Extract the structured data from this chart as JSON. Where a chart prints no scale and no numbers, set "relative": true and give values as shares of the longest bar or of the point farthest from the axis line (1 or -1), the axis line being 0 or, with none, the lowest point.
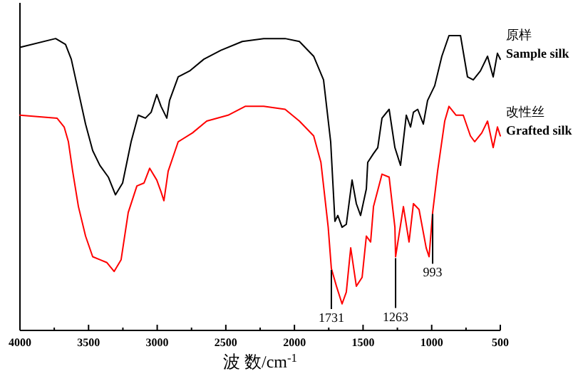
{
  "chart_data": {
    "type": "line",
    "relative": true,
    "xlabel": "波 数/cm$^{-1}$",
    "xlim": [
      4000,
      500
    ],
    "xticks": [
      4000,
      {
        "value": 3750,
        "label": null
      },
      3500,
      {
        "value": 3250,
        "label": null
      },
      3000,
      {
        "value": 2750,
        "label": null
      },
      2500,
      {
        "value": 2250,
        "label": null
      },
      2000,
      {
        "value": 1750,
        "label": null
      },
      1500,
      {
        "value": 1250,
        "label": null
      },
      1000,
      {
        "value": 750,
        "label": null
      },
      500
    ],
    "series": [
      {
        "name": "原样\nSample silk",
        "color": "#000000",
        "x": [
          4000,
          3740,
          3668,
          3626,
          3574,
          3522,
          3470,
          3418,
          3356,
          3304,
          3252,
          3190,
          3138,
          3086,
          3044,
          3003,
          2972,
          2930,
          2910,
          2847,
          2764,
          2660,
          2536,
          2380,
          2224,
          2068,
          1964,
          1860,
          1788,
          1736,
          1705,
          1684,
          1653,
          1622,
          1580,
          1549,
          1518,
          1476,
          1466,
          1424,
          1393,
          1362,
          1310,
          1268,
          1227,
          1185,
          1154,
          1133,
          1102,
          1061,
          1030,
          978,
          926,
          874,
          790,
          739,
          697,
          645,
          593,
          552,
          521,
          500
        ],
        "values": [
          0.96,
          0.99,
          0.97,
          0.92,
          0.81,
          0.7,
          0.61,
          0.56,
          0.52,
          0.46,
          0.5,
          0.64,
          0.73,
          0.72,
          0.74,
          0.8,
          0.76,
          0.72,
          0.78,
          0.86,
          0.88,
          0.92,
          0.95,
          0.98,
          0.99,
          0.99,
          0.98,
          0.93,
          0.85,
          0.64,
          0.37,
          0.39,
          0.35,
          0.36,
          0.51,
          0.43,
          0.39,
          0.48,
          0.57,
          0.6,
          0.62,
          0.72,
          0.75,
          0.62,
          0.56,
          0.73,
          0.69,
          0.74,
          0.75,
          0.7,
          0.78,
          0.83,
          0.93,
          1.0,
          1.0,
          0.86,
          0.85,
          0.88,
          0.93,
          0.86,
          0.94,
          0.92
        ]
      },
      {
        "name": "改性丝\nGrafted silk",
        "color": "#ff0000",
        "x": [
          4000,
          3730,
          3678,
          3647,
          3616,
          3574,
          3522,
          3470,
          3418,
          3366,
          3314,
          3263,
          3211,
          3148,
          3096,
          3055,
          3003,
          2972,
          2951,
          2920,
          2847,
          2743,
          2639,
          2484,
          2359,
          2224,
          2068,
          1964,
          1860,
          1807,
          1754,
          1731,
          1694,
          1653,
          1622,
          1590,
          1549,
          1507,
          1476,
          1445,
          1424,
          1362,
          1310,
          1268,
          1263,
          1206,
          1165,
          1133,
          1092,
          1040,
          1019,
          993,
          957,
          905,
          874,
          822,
          770,
          718,
          687,
          635,
          593,
          552,
          521,
          500
        ],
        "values": [
          0.73,
          0.72,
          0.69,
          0.64,
          0.54,
          0.42,
          0.32,
          0.25,
          0.24,
          0.23,
          0.2,
          0.24,
          0.4,
          0.49,
          0.5,
          0.55,
          0.51,
          0.47,
          0.44,
          0.54,
          0.64,
          0.67,
          0.71,
          0.73,
          0.76,
          0.76,
          0.75,
          0.71,
          0.66,
          0.57,
          0.35,
          0.21,
          0.15,
          0.09,
          0.13,
          0.28,
          0.15,
          0.18,
          0.32,
          0.3,
          0.42,
          0.53,
          0.52,
          0.35,
          0.25,
          0.42,
          0.3,
          0.43,
          0.41,
          0.28,
          0.25,
          0.4,
          0.54,
          0.71,
          0.76,
          0.73,
          0.73,
          0.66,
          0.64,
          0.67,
          0.71,
          0.62,
          0.69,
          0.66
        ]
      }
    ],
    "annotations": [
      {
        "text": "1731",
        "x": 1731,
        "y": 0.21
      },
      {
        "text": "1263",
        "x": 1263,
        "y": 0.25
      },
      {
        "text": "993",
        "x": 993,
        "y": 0.4
      }
    ]
  }
}
